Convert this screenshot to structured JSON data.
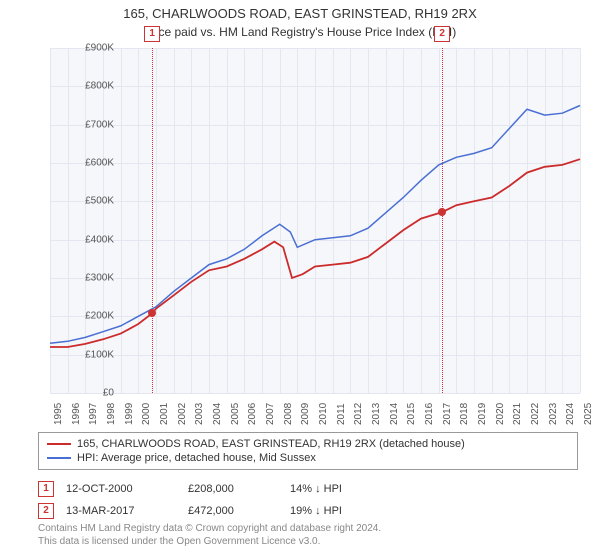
{
  "title": "165, CHARLWOODS ROAD, EAST GRINSTEAD, RH19 2RX",
  "subtitle": "Price paid vs. HM Land Registry's House Price Index (HPI)",
  "chart": {
    "type": "line",
    "background_color": "#f5f7fb",
    "grid_color": "#e4e7ef",
    "ylim": [
      0,
      900000
    ],
    "ytick_step": 100000,
    "yticks": [
      "£0",
      "£100K",
      "£200K",
      "£300K",
      "£400K",
      "£500K",
      "£600K",
      "£700K",
      "£800K",
      "£900K"
    ],
    "xlim": [
      1995,
      2025
    ],
    "xticks": [
      1995,
      1996,
      1997,
      1998,
      1999,
      2000,
      2001,
      2002,
      2003,
      2004,
      2005,
      2006,
      2007,
      2008,
      2009,
      2010,
      2011,
      2012,
      2013,
      2014,
      2015,
      2016,
      2017,
      2018,
      2019,
      2020,
      2021,
      2022,
      2023,
      2024,
      2025
    ],
    "series": [
      {
        "name": "property",
        "label": "165, CHARLWOODS ROAD, EAST GRINSTEAD, RH19 2RX (detached house)",
        "color": "#cc2b2b",
        "line_width": 1.8,
        "data": [
          [
            1995,
            120000
          ],
          [
            1996,
            120000
          ],
          [
            1997,
            128000
          ],
          [
            1998,
            140000
          ],
          [
            1999,
            155000
          ],
          [
            2000,
            180000
          ],
          [
            2000.78,
            208000
          ],
          [
            2001,
            220000
          ],
          [
            2002,
            255000
          ],
          [
            2003,
            290000
          ],
          [
            2004,
            320000
          ],
          [
            2005,
            330000
          ],
          [
            2006,
            350000
          ],
          [
            2007,
            375000
          ],
          [
            2007.7,
            395000
          ],
          [
            2008.2,
            380000
          ],
          [
            2008.7,
            300000
          ],
          [
            2009.3,
            310000
          ],
          [
            2010,
            330000
          ],
          [
            2011,
            335000
          ],
          [
            2012,
            340000
          ],
          [
            2013,
            355000
          ],
          [
            2014,
            390000
          ],
          [
            2015,
            425000
          ],
          [
            2016,
            455000
          ],
          [
            2017.2,
            472000
          ],
          [
            2018,
            490000
          ],
          [
            2019,
            500000
          ],
          [
            2020,
            510000
          ],
          [
            2021,
            540000
          ],
          [
            2022,
            575000
          ],
          [
            2023,
            590000
          ],
          [
            2024,
            595000
          ],
          [
            2025,
            610000
          ]
        ]
      },
      {
        "name": "hpi",
        "label": "HPI: Average price, detached house, Mid Sussex",
        "color": "#4a6fd4",
        "line_width": 1.5,
        "data": [
          [
            1995,
            130000
          ],
          [
            1996,
            135000
          ],
          [
            1997,
            145000
          ],
          [
            1998,
            160000
          ],
          [
            1999,
            175000
          ],
          [
            2000,
            200000
          ],
          [
            2001,
            225000
          ],
          [
            2002,
            265000
          ],
          [
            2003,
            300000
          ],
          [
            2004,
            335000
          ],
          [
            2005,
            350000
          ],
          [
            2006,
            375000
          ],
          [
            2007,
            410000
          ],
          [
            2008,
            440000
          ],
          [
            2008.6,
            420000
          ],
          [
            2009,
            380000
          ],
          [
            2010,
            400000
          ],
          [
            2011,
            405000
          ],
          [
            2012,
            410000
          ],
          [
            2013,
            430000
          ],
          [
            2014,
            470000
          ],
          [
            2015,
            510000
          ],
          [
            2016,
            555000
          ],
          [
            2017,
            595000
          ],
          [
            2018,
            615000
          ],
          [
            2019,
            625000
          ],
          [
            2020,
            640000
          ],
          [
            2021,
            690000
          ],
          [
            2022,
            740000
          ],
          [
            2023,
            725000
          ],
          [
            2024,
            730000
          ],
          [
            2025,
            750000
          ]
        ]
      }
    ],
    "markers": [
      {
        "id": "1",
        "x": 2000.78,
        "y": 208000
      },
      {
        "id": "2",
        "x": 2017.2,
        "y": 472000
      }
    ],
    "marker_color": "#cc3333"
  },
  "legend": {
    "border_color": "#999999"
  },
  "transactions": [
    {
      "marker": "1",
      "date": "12-OCT-2000",
      "price": "£208,000",
      "diff": "14% ↓ HPI"
    },
    {
      "marker": "2",
      "date": "13-MAR-2017",
      "price": "£472,000",
      "diff": "19% ↓ HPI"
    }
  ],
  "footer": {
    "line1": "Contains HM Land Registry data © Crown copyright and database right 2024.",
    "line2": "This data is licensed under the Open Government Licence v3.0."
  }
}
